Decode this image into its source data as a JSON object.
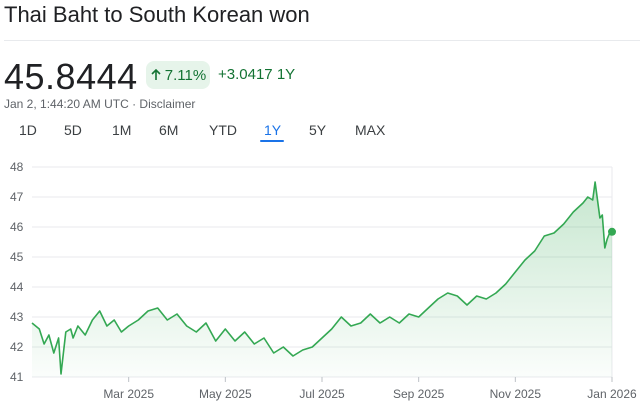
{
  "title": "Thai Baht to South Korean won",
  "price": "45.8444",
  "change_pct": "7.11%",
  "change_abs": "+3.0417",
  "change_period": "1Y",
  "timestamp": "Jan 2, 1:44:20 AM UTC",
  "separator": "·",
  "disclaimer": "Disclaimer",
  "tabs": [
    "1D",
    "5D",
    "1M",
    "6M",
    "YTD",
    "1Y",
    "5Y",
    "MAX"
  ],
  "active_tab": "1Y",
  "colors": {
    "line": "#34a853",
    "fill": "#34a853",
    "accent": "#1a73e8",
    "positive": "#137333"
  },
  "icons": {
    "change": "arrow-up-icon"
  },
  "chart_data": {
    "type": "area",
    "ylim": [
      41,
      48
    ],
    "yticks": [
      41,
      42,
      43,
      44,
      45,
      46,
      47,
      48
    ],
    "xticks": [
      "Mar 2025",
      "May 2025",
      "Jul 2025",
      "Sep 2025",
      "Nov 2025",
      "Jan 2026"
    ],
    "xtick_positions": [
      2,
      4,
      6,
      8,
      10,
      12
    ],
    "grid": true,
    "series": [
      {
        "x": [
          0,
          0.15,
          0.25,
          0.35,
          0.45,
          0.55,
          0.6,
          0.7,
          0.8,
          0.85,
          0.95,
          1.1,
          1.25,
          1.4,
          1.55,
          1.7,
          1.85,
          2.0,
          2.2,
          2.4,
          2.6,
          2.8,
          3.0,
          3.2,
          3.4,
          3.6,
          3.8,
          4.0,
          4.2,
          4.4,
          4.6,
          4.8,
          5.0,
          5.2,
          5.4,
          5.6,
          5.8,
          6.0,
          6.2,
          6.4,
          6.6,
          6.8,
          7.0,
          7.2,
          7.4,
          7.6,
          7.8,
          8.0,
          8.2,
          8.4,
          8.6,
          8.8,
          9.0,
          9.2,
          9.4,
          9.6,
          9.8,
          10.0,
          10.2,
          10.4,
          10.6,
          10.8,
          11.0,
          11.2,
          11.4,
          11.5,
          11.6,
          11.65,
          11.7,
          11.75,
          11.8,
          11.85,
          11.9,
          11.95,
          12.0
        ],
        "y": [
          42.8,
          42.6,
          42.1,
          42.4,
          41.8,
          42.3,
          41.1,
          42.5,
          42.6,
          42.3,
          42.7,
          42.4,
          42.9,
          43.2,
          42.7,
          42.9,
          42.5,
          42.7,
          42.9,
          43.2,
          43.3,
          42.9,
          43.1,
          42.7,
          42.5,
          42.8,
          42.2,
          42.6,
          42.2,
          42.5,
          42.1,
          42.3,
          41.8,
          42.0,
          41.7,
          41.9,
          42.0,
          42.3,
          42.6,
          43.0,
          42.7,
          42.8,
          43.1,
          42.8,
          43.0,
          42.8,
          43.1,
          43.0,
          43.3,
          43.6,
          43.8,
          43.7,
          43.4,
          43.7,
          43.6,
          43.8,
          44.1,
          44.5,
          44.9,
          45.2,
          45.7,
          45.8,
          46.1,
          46.5,
          46.8,
          47.0,
          46.9,
          47.5,
          46.9,
          46.3,
          46.4,
          45.3,
          45.6,
          45.8,
          45.84
        ]
      }
    ]
  }
}
